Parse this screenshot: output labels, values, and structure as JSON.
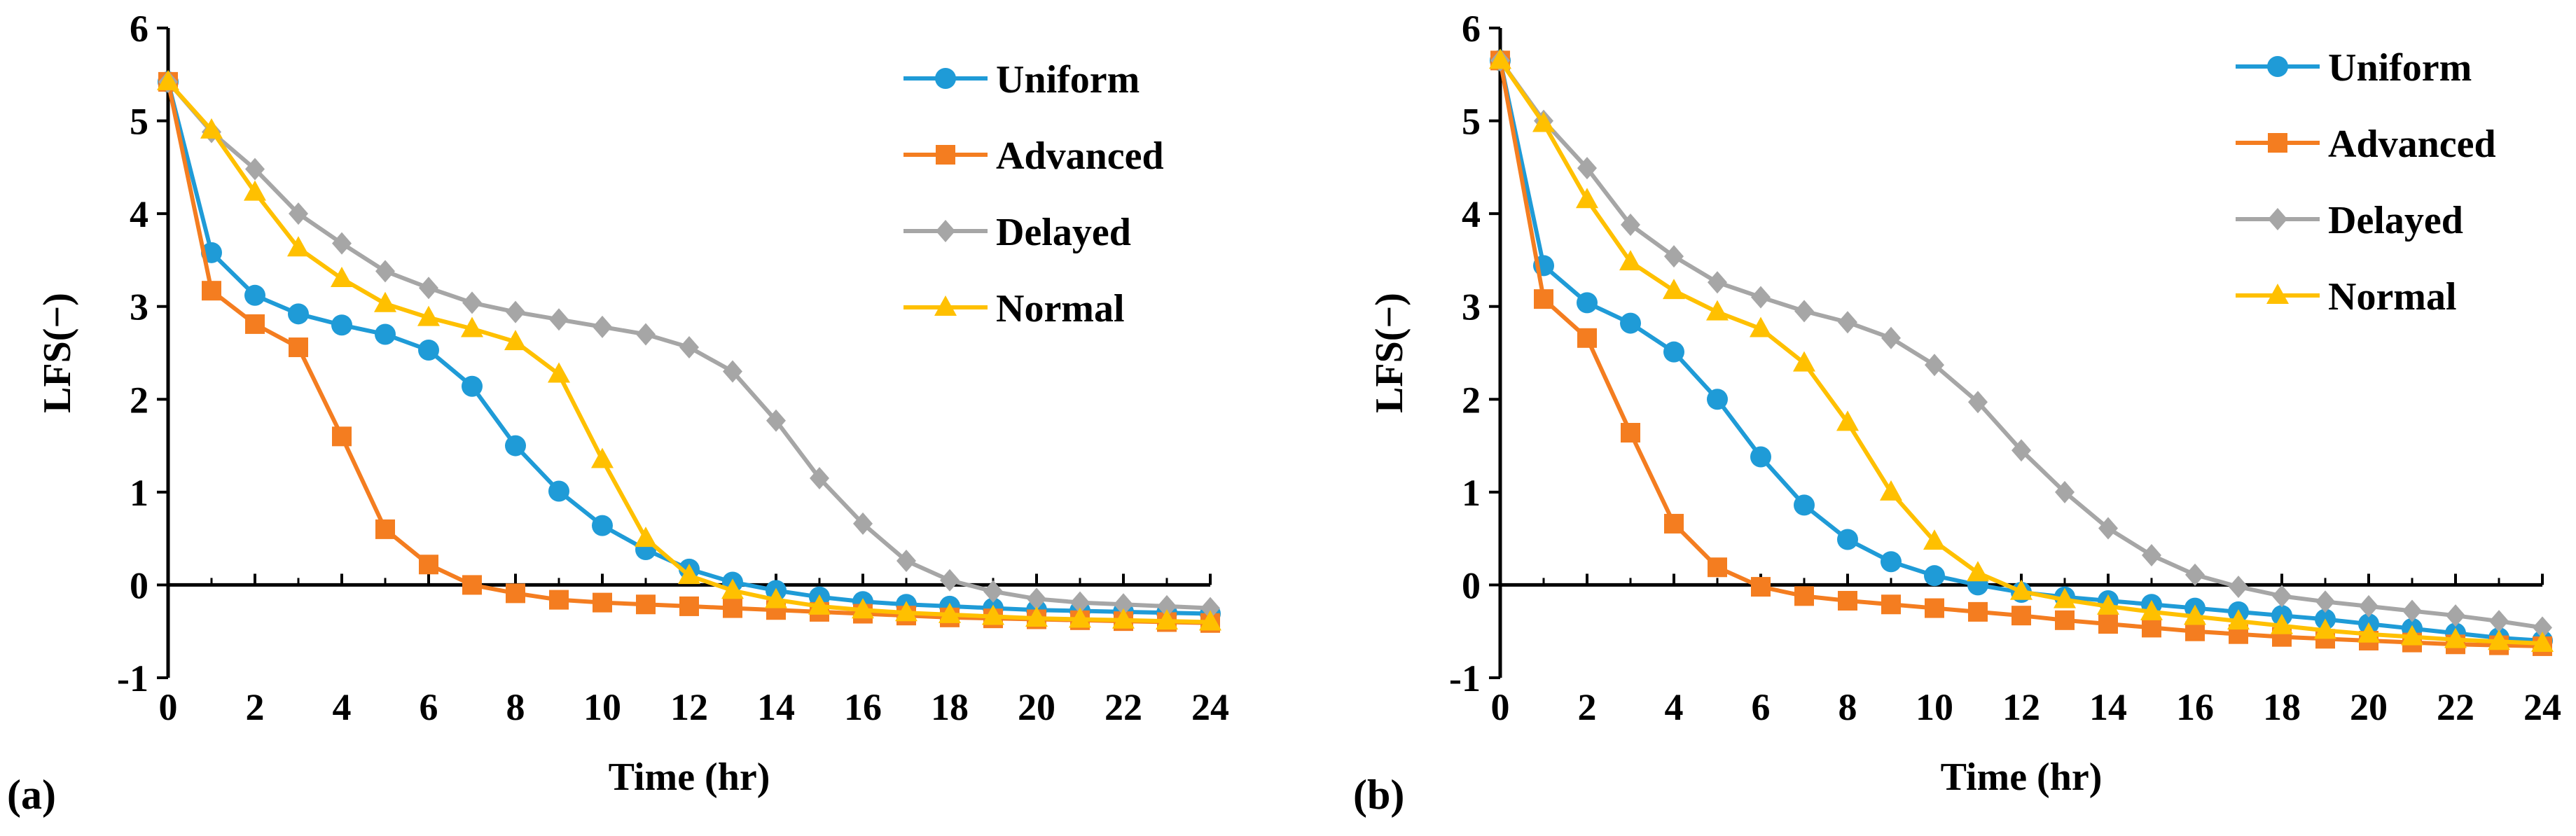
{
  "colors": {
    "Uniform": "#1f9bd7",
    "Advanced": "#f47d20",
    "Delayed": "#a6a6a6",
    "Normal": "#ffc000",
    "axis": "#000000"
  },
  "chart_data": [
    {
      "type": "line",
      "panel_label": "(a)",
      "xlabel": "Time (hr)",
      "ylabel": "LFS(−)",
      "xlim": [
        0,
        24
      ],
      "ylim": [
        -1,
        6
      ],
      "x_ticks": [
        "0",
        "2",
        "4",
        "6",
        "8",
        "10",
        "12",
        "14",
        "16",
        "18",
        "20",
        "22",
        "24"
      ],
      "y_ticks": [
        "-1",
        "0",
        "1",
        "2",
        "3",
        "4",
        "5",
        "6"
      ],
      "legend_position": "top-right",
      "x": [
        0,
        1,
        2,
        3,
        4,
        5,
        6,
        7,
        8,
        9,
        10,
        11,
        12,
        13,
        14,
        15,
        16,
        17,
        18,
        19,
        20,
        21,
        22,
        23,
        24
      ],
      "series": [
        {
          "name": "Uniform",
          "marker": "circle",
          "values": [
            5.42,
            3.58,
            3.12,
            2.92,
            2.8,
            2.7,
            2.53,
            2.14,
            1.5,
            1.01,
            0.64,
            0.38,
            0.17,
            0.03,
            -0.06,
            -0.13,
            -0.18,
            -0.21,
            -0.23,
            -0.25,
            -0.27,
            -0.28,
            -0.29,
            -0.3,
            -0.31
          ]
        },
        {
          "name": "Advanced",
          "marker": "square",
          "values": [
            5.42,
            3.17,
            2.81,
            2.56,
            1.6,
            0.6,
            0.22,
            0.0,
            -0.09,
            -0.16,
            -0.19,
            -0.21,
            -0.23,
            -0.25,
            -0.27,
            -0.29,
            -0.31,
            -0.33,
            -0.35,
            -0.36,
            -0.37,
            -0.38,
            -0.39,
            -0.4,
            -0.41
          ]
        },
        {
          "name": "Delayed",
          "marker": "diamond",
          "values": [
            5.42,
            4.88,
            4.48,
            4.0,
            3.68,
            3.38,
            3.2,
            3.04,
            2.94,
            2.86,
            2.78,
            2.7,
            2.56,
            2.3,
            1.77,
            1.15,
            0.66,
            0.26,
            0.05,
            -0.07,
            -0.15,
            -0.19,
            -0.21,
            -0.23,
            -0.25
          ]
        },
        {
          "name": "Normal",
          "marker": "triangle",
          "values": [
            5.42,
            4.9,
            4.23,
            3.63,
            3.3,
            3.03,
            2.88,
            2.76,
            2.62,
            2.27,
            1.35,
            0.5,
            0.1,
            -0.06,
            -0.16,
            -0.23,
            -0.27,
            -0.3,
            -0.32,
            -0.34,
            -0.36,
            -0.37,
            -0.38,
            -0.39,
            -0.4
          ]
        }
      ]
    },
    {
      "type": "line",
      "panel_label": "(b)",
      "xlabel": "Time (hr)",
      "ylabel": "LFS(−)",
      "xlim": [
        0,
        24
      ],
      "ylim": [
        -1,
        6
      ],
      "x_ticks": [
        "0",
        "2",
        "4",
        "6",
        "8",
        "10",
        "12",
        "14",
        "16",
        "18",
        "20",
        "22",
        "24"
      ],
      "y_ticks": [
        "-1",
        "0",
        "1",
        "2",
        "3",
        "4",
        "5",
        "6"
      ],
      "legend_position": "top-right",
      "x": [
        0,
        1,
        2,
        3,
        4,
        5,
        6,
        7,
        8,
        9,
        10,
        11,
        12,
        13,
        14,
        15,
        16,
        17,
        18,
        19,
        20,
        21,
        22,
        23,
        24
      ],
      "series": [
        {
          "name": "Uniform",
          "marker": "circle",
          "values": [
            5.65,
            3.44,
            3.04,
            2.82,
            2.51,
            2.0,
            1.38,
            0.86,
            0.49,
            0.25,
            0.1,
            0.0,
            -0.08,
            -0.13,
            -0.17,
            -0.21,
            -0.25,
            -0.29,
            -0.33,
            -0.37,
            -0.42,
            -0.47,
            -0.52,
            -0.57,
            -0.6
          ]
        },
        {
          "name": "Advanced",
          "marker": "square",
          "values": [
            5.65,
            3.08,
            2.66,
            1.64,
            0.66,
            0.19,
            -0.02,
            -0.12,
            -0.17,
            -0.21,
            -0.25,
            -0.29,
            -0.33,
            -0.38,
            -0.42,
            -0.46,
            -0.5,
            -0.53,
            -0.56,
            -0.58,
            -0.6,
            -0.62,
            -0.64,
            -0.65,
            -0.66
          ]
        },
        {
          "name": "Delayed",
          "marker": "diamond",
          "values": [
            5.65,
            5.0,
            4.49,
            3.88,
            3.54,
            3.26,
            3.1,
            2.95,
            2.83,
            2.66,
            2.37,
            1.97,
            1.45,
            1.0,
            0.61,
            0.32,
            0.11,
            -0.02,
            -0.12,
            -0.18,
            -0.23,
            -0.28,
            -0.33,
            -0.39,
            -0.46
          ]
        },
        {
          "name": "Normal",
          "marker": "triangle",
          "values": [
            5.65,
            4.97,
            4.15,
            3.48,
            3.17,
            2.94,
            2.76,
            2.39,
            1.75,
            1.0,
            0.47,
            0.13,
            -0.07,
            -0.16,
            -0.23,
            -0.29,
            -0.34,
            -0.39,
            -0.44,
            -0.49,
            -0.53,
            -0.56,
            -0.59,
            -0.61,
            -0.63
          ]
        }
      ]
    }
  ]
}
